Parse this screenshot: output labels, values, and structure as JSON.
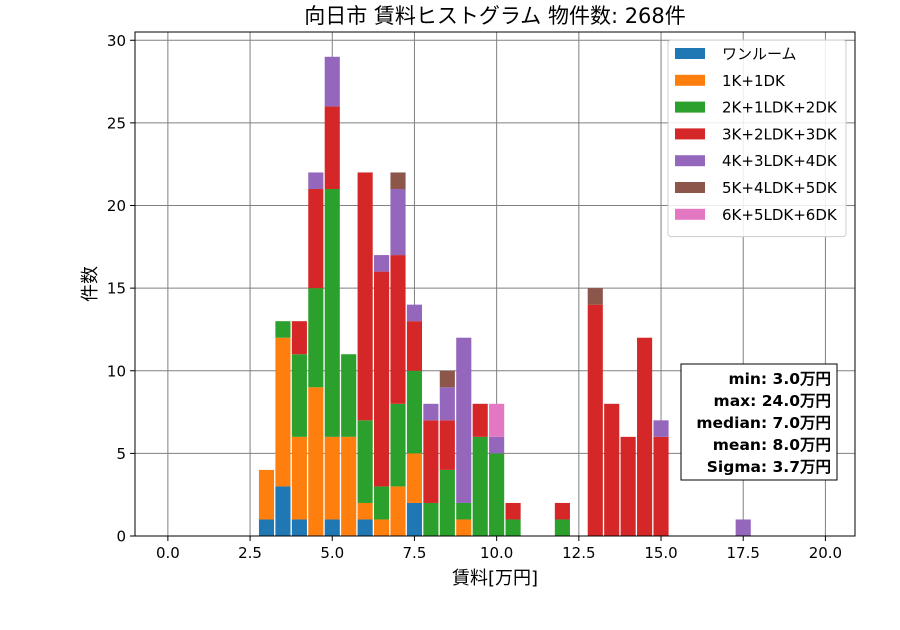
{
  "chart_data": {
    "type": "bar",
    "stacked": true,
    "title": "向日市 賃料ヒストグラム 物件数: 268件",
    "xlabel": "賃料[万円]",
    "ylabel": "件数",
    "xlim": [
      -1.0,
      20.9
    ],
    "ylim": [
      0,
      30.5
    ],
    "xticks": [
      "0.0",
      "2.5",
      "5.0",
      "7.5",
      "10.0",
      "12.5",
      "15.0",
      "17.5",
      "20.0"
    ],
    "yticks": [
      "0",
      "5",
      "10",
      "15",
      "20",
      "25",
      "30"
    ],
    "grid": true,
    "legend_position": "top-right",
    "bin_width": 0.5,
    "x": [
      3.0,
      3.5,
      4.0,
      4.5,
      5.0,
      5.5,
      6.0,
      6.5,
      7.0,
      7.5,
      8.0,
      8.5,
      9.0,
      9.5,
      10.0,
      10.5,
      11.0,
      11.5,
      12.0,
      12.5,
      13.0,
      13.5,
      14.0,
      14.5,
      15.0,
      15.5,
      16.0,
      16.5,
      17.0,
      17.5
    ],
    "series": [
      {
        "name": "ワンルーム",
        "color": "#1f77b4",
        "values": [
          1,
          3,
          1,
          0,
          1,
          0,
          1,
          0,
          0,
          2,
          0,
          0,
          0,
          0,
          0,
          0,
          0,
          0,
          0,
          0,
          0,
          0,
          0,
          0,
          0,
          0,
          0,
          0,
          0,
          0
        ]
      },
      {
        "name": "1K+1DK",
        "color": "#ff7f0e",
        "values": [
          3,
          9,
          5,
          9,
          5,
          6,
          1,
          1,
          3,
          3,
          0,
          0,
          1,
          0,
          0,
          0,
          0,
          0,
          0,
          0,
          0,
          0,
          0,
          0,
          0,
          0,
          0,
          0,
          0,
          0
        ]
      },
      {
        "name": "2K+1LDK+2DK",
        "color": "#2ca02c",
        "values": [
          0,
          1,
          5,
          6,
          15,
          5,
          5,
          2,
          5,
          5,
          2,
          4,
          1,
          6,
          5,
          1,
          0,
          0,
          1,
          0,
          0,
          0,
          0,
          0,
          0,
          0,
          0,
          0,
          0,
          0
        ]
      },
      {
        "name": "3K+2LDK+3DK",
        "color": "#d62728",
        "values": [
          0,
          0,
          2,
          6,
          5,
          0,
          15,
          13,
          9,
          3,
          5,
          3,
          0,
          2,
          0,
          1,
          0,
          0,
          1,
          0,
          14,
          8,
          6,
          12,
          6,
          0,
          0,
          0,
          0,
          0
        ]
      },
      {
        "name": "4K+3LDK+4DK",
        "color": "#9467bd",
        "values": [
          0,
          0,
          0,
          1,
          3,
          0,
          0,
          1,
          4,
          1,
          1,
          2,
          10,
          0,
          1,
          0,
          0,
          0,
          0,
          0,
          0,
          0,
          0,
          0,
          1,
          0,
          0,
          0,
          0,
          1
        ]
      },
      {
        "name": "5K+4LDK+5DK",
        "color": "#8c564b",
        "values": [
          0,
          0,
          0,
          0,
          0,
          0,
          0,
          0,
          1,
          0,
          0,
          1,
          0,
          0,
          0,
          0,
          0,
          0,
          0,
          0,
          1,
          0,
          0,
          0,
          0,
          0,
          0,
          0,
          0,
          0
        ]
      },
      {
        "name": "6K+5LDK+6DK",
        "color": "#e377c2",
        "values": [
          0,
          0,
          0,
          0,
          0,
          0,
          0,
          0,
          0,
          0,
          0,
          0,
          0,
          0,
          2,
          0,
          0,
          0,
          0,
          0,
          0,
          0,
          0,
          0,
          0,
          0,
          0,
          0,
          0,
          0
        ]
      }
    ],
    "stats_box": [
      "min: 3.0万円",
      "max: 24.0万円",
      "median: 7.0万円",
      "mean: 8.0万円",
      "Sigma: 3.7万円"
    ]
  }
}
